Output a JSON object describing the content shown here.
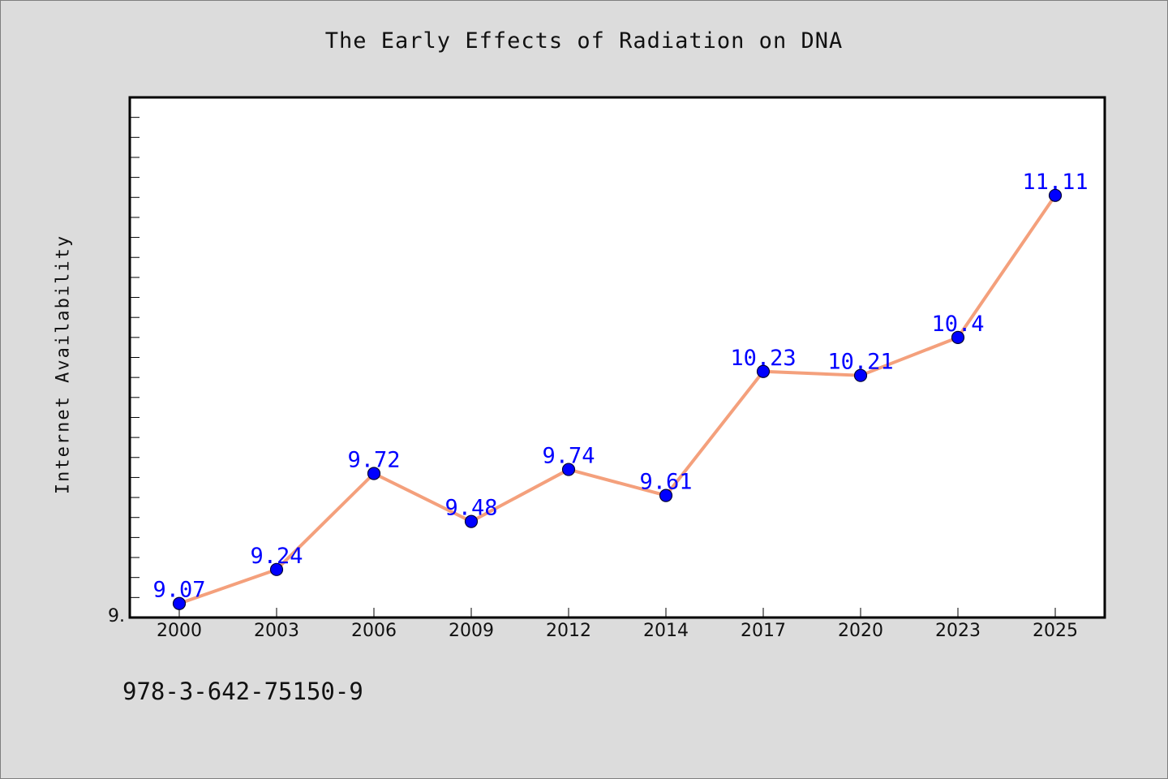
{
  "chart_data": {
    "type": "line",
    "title": "The Early Effects of Radiation on DNA",
    "xlabel": "",
    "ylabel": "Internet Availability",
    "categories": [
      "2000",
      "2003",
      "2006",
      "2009",
      "2012",
      "2014",
      "2017",
      "2020",
      "2023",
      "2025"
    ],
    "series": [
      {
        "values": [
          9.07,
          9.24,
          9.72,
          9.48,
          9.74,
          9.61,
          10.23,
          10.21,
          10.4,
          11.11
        ],
        "labels": [
          "9.07",
          "9.24",
          "9.72",
          "9.48",
          "9.74",
          "9.61",
          "10.23",
          "10.21",
          "10.4",
          "11.11"
        ]
      }
    ],
    "ylim": [
      9.0,
      11.6
    ],
    "y_tick_labels": [
      {
        "value": 9.0,
        "label": "9."
      }
    ],
    "y_minor_step": 0.1,
    "grid": false,
    "legend": "none",
    "colors": {
      "line": "#f4a07c",
      "marker_fill": "#0000ff",
      "marker_edge": "#000033",
      "data_label": "#0000ff",
      "plot_background": "#ffffff",
      "figure_background": "#dcdcdc"
    }
  },
  "footer": {
    "identifier": "978-3-642-75150-9"
  }
}
